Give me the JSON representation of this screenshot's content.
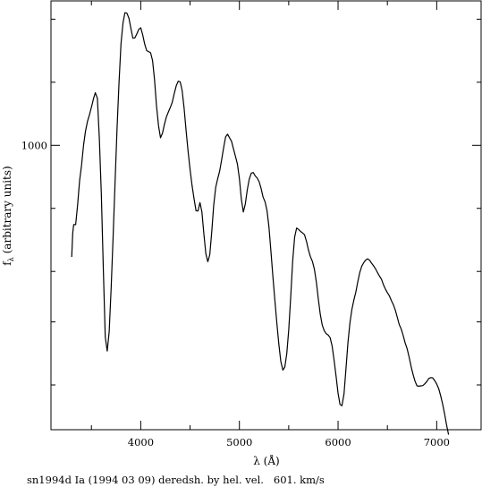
{
  "chart_data": {
    "type": "line",
    "title": "",
    "caption": "sn1994d Ia (1994 03 09) deredsh. by hel. vel.   601. km/s",
    "xlabel": "λ (Å)",
    "ylabel_main": "f",
    "ylabel_sub": "λ",
    "ylabel_rest": " (arbitrary units)",
    "xlim": [
      3090,
      7450
    ],
    "ylim_log": [
      2.7745,
      3.1145
    ],
    "y_scale": "log",
    "grid": false,
    "x_ticks": [
      {
        "value": 4000,
        "label": "4000"
      },
      {
        "value": 5000,
        "label": "5000"
      },
      {
        "value": 6000,
        "label": "6000"
      },
      {
        "value": 7000,
        "label": "7000"
      }
    ],
    "x_minor": [
      3500,
      4500,
      5500,
      6500
    ],
    "y_ticks": [
      {
        "value": 1000,
        "label": "1000"
      }
    ],
    "y_minor_log": [
      2.95,
      2.9,
      2.86,
      2.81,
      3.05,
      3.1
    ],
    "series": [
      {
        "name": "",
        "color": "#000000",
        "x": [
          3300,
          3310,
          3320,
          3340,
          3360,
          3380,
          3400,
          3420,
          3440,
          3460,
          3480,
          3500,
          3510,
          3520,
          3540,
          3560,
          3580,
          3600,
          3620,
          3640,
          3660,
          3680,
          3700,
          3720,
          3740,
          3760,
          3780,
          3800,
          3820,
          3840,
          3860,
          3880,
          3900,
          3920,
          3940,
          3960,
          3980,
          4000,
          4020,
          4040,
          4060,
          4080,
          4100,
          4120,
          4140,
          4160,
          4180,
          4200,
          4220,
          4240,
          4260,
          4280,
          4300,
          4320,
          4340,
          4360,
          4380,
          4400,
          4420,
          4440,
          4460,
          4480,
          4500,
          4520,
          4540,
          4560,
          4580,
          4600,
          4620,
          4640,
          4660,
          4680,
          4700,
          4720,
          4740,
          4760,
          4780,
          4800,
          4820,
          4840,
          4860,
          4880,
          4900,
          4920,
          4940,
          4960,
          4980,
          5000,
          5020,
          5040,
          5060,
          5080,
          5100,
          5120,
          5140,
          5160,
          5180,
          5200,
          5220,
          5240,
          5260,
          5280,
          5300,
          5320,
          5340,
          5360,
          5380,
          5400,
          5420,
          5440,
          5460,
          5480,
          5500,
          5520,
          5540,
          5560,
          5580,
          5600,
          5620,
          5640,
          5660,
          5680,
          5700,
          5720,
          5740,
          5760,
          5780,
          5800,
          5820,
          5840,
          5860,
          5880,
          5900,
          5920,
          5940,
          5960,
          5980,
          6000,
          6020,
          6040,
          6060,
          6080,
          6100,
          6120,
          6140,
          6160,
          6180,
          6200,
          6220,
          6240,
          6260,
          6280,
          6300,
          6320,
          6340,
          6360,
          6380,
          6400,
          6420,
          6440,
          6460,
          6480,
          6500,
          6520,
          6540,
          6560,
          6580,
          6600,
          6620,
          6640,
          6660,
          6680,
          6700,
          6720,
          6740,
          6760,
          6780,
          6800,
          6820,
          6840,
          6860,
          6880,
          6900,
          6920,
          6940,
          6960,
          6980,
          7000,
          7020,
          7040,
          7060,
          7080,
          7100,
          7120,
          7140,
          7160,
          7180,
          7200
        ],
        "log_flux": [
          2.9115,
          2.9301,
          2.9371,
          2.9371,
          2.9528,
          2.9719,
          2.9842,
          2.9999,
          3.0112,
          3.0189,
          3.0241,
          3.0301,
          3.0332,
          3.0366,
          3.0417,
          3.0373,
          3.0053,
          2.9617,
          2.9031,
          2.8481,
          2.8368,
          2.8523,
          2.8869,
          2.9277,
          2.9712,
          3.0136,
          3.0498,
          3.0804,
          3.0968,
          3.1051,
          3.1048,
          3.1007,
          3.0926,
          3.0849,
          3.0852,
          3.0883,
          3.0919,
          3.0932,
          3.0875,
          3.0803,
          3.0751,
          3.0743,
          3.0733,
          3.0672,
          3.052,
          3.0314,
          3.0154,
          3.006,
          3.0096,
          3.0167,
          3.0226,
          3.0265,
          3.0301,
          3.0343,
          3.0412,
          3.0472,
          3.0508,
          3.0503,
          3.0433,
          3.0293,
          3.0117,
          2.9955,
          2.9805,
          2.968,
          2.9576,
          2.9481,
          2.9479,
          2.9546,
          2.9471,
          2.9296,
          2.914,
          2.9077,
          2.9133,
          2.9315,
          2.9526,
          2.9666,
          2.9734,
          2.9794,
          2.9887,
          2.9982,
          3.0067,
          3.0088,
          3.006,
          3.0032,
          2.9972,
          2.9913,
          2.9851,
          2.9737,
          2.9573,
          2.9471,
          2.9534,
          2.9646,
          2.9731,
          2.9779,
          2.9784,
          2.9757,
          2.974,
          2.9711,
          2.9657,
          2.9589,
          2.9552,
          2.9482,
          2.9349,
          2.9157,
          2.8956,
          2.8769,
          2.859,
          2.8424,
          2.8287,
          2.8218,
          2.8242,
          2.8349,
          2.8538,
          2.8799,
          2.9083,
          2.9273,
          2.9344,
          2.9333,
          2.9317,
          2.9305,
          2.9291,
          2.9239,
          2.9171,
          2.9117,
          2.9079,
          2.9016,
          2.8913,
          2.8779,
          2.8658,
          2.8573,
          2.853,
          2.8506,
          2.8496,
          2.8474,
          2.8409,
          2.8296,
          2.817,
          2.8036,
          2.7945,
          2.7935,
          2.8029,
          2.823,
          2.8436,
          2.8591,
          2.8698,
          2.8773,
          2.8835,
          2.8918,
          2.8991,
          2.9041,
          2.9069,
          2.909,
          2.91,
          2.9089,
          2.9065,
          2.9044,
          2.902,
          2.899,
          2.8962,
          2.8938,
          2.8894,
          2.886,
          2.8832,
          2.8807,
          2.877,
          2.8737,
          2.8695,
          2.8639,
          2.858,
          2.8544,
          2.8494,
          2.8432,
          2.8387,
          2.8321,
          2.8247,
          2.8184,
          2.813,
          2.8093,
          2.809,
          2.8093,
          2.8095,
          2.8109,
          2.8127,
          2.8151,
          2.8158,
          2.8156,
          2.8135,
          2.8106,
          2.807,
          2.8013,
          2.7947,
          2.7869,
          2.7782,
          2.7706
        ]
      }
    ]
  }
}
